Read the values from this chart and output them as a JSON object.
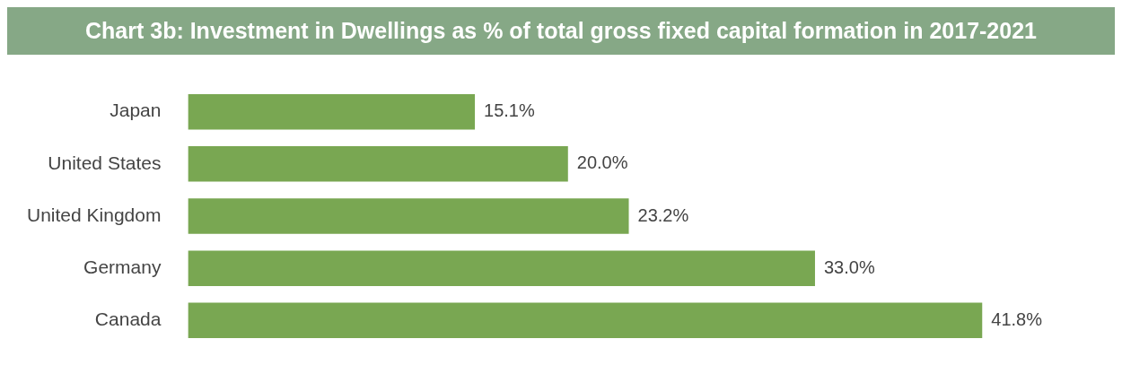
{
  "chart_data": {
    "type": "bar",
    "orientation": "horizontal",
    "title": "Chart 3b: Investment in Dwellings as % of total gross fixed capital formation in 2017-2021",
    "categories": [
      "Japan",
      "United States",
      "United Kingdom",
      "Germany",
      "Canada"
    ],
    "values": [
      15.1,
      20.0,
      23.2,
      33.0,
      41.8
    ],
    "value_labels": [
      "15.1%",
      "20.0%",
      "23.2%",
      "33.0%",
      "41.8%"
    ],
    "color": "#79a752",
    "tick_labels": "y",
    "grid": false,
    "legend": false
  }
}
